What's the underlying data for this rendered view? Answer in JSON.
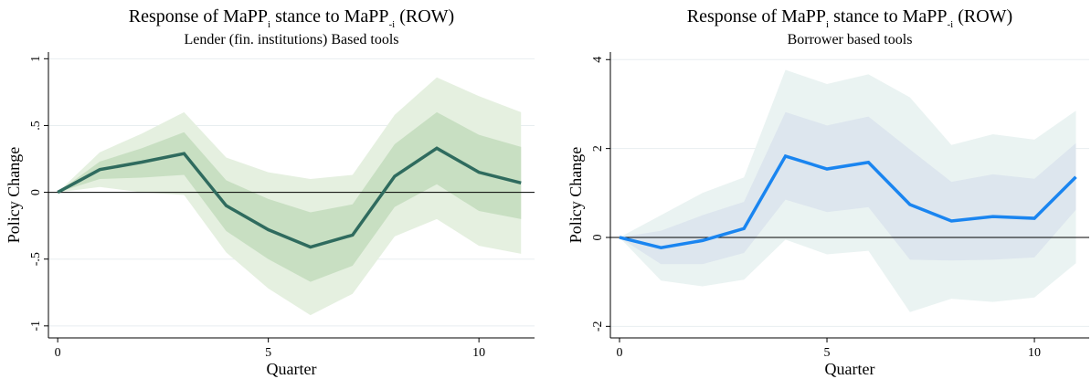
{
  "chart_data": [
    {
      "type": "line",
      "title": [
        "Response of MaPP",
        "i",
        " stance to MaPP",
        "-i",
        " (ROW)"
      ],
      "subtitle": "Lender (fin. institutions) Based tools",
      "xlabel": "Quarter",
      "ylabel": "Policy Change",
      "x": [
        0,
        1,
        2,
        3,
        4,
        5,
        6,
        7,
        8,
        9,
        10,
        11
      ],
      "xlim": [
        -0.22,
        11.32
      ],
      "xticks": [
        0,
        5,
        10
      ],
      "ylim": [
        -1.09,
        1.05
      ],
      "yticks": [
        1,
        {
          "value": 0.5,
          "label": ".5"
        },
        0,
        {
          "value": -0.5,
          "label": "-.5"
        },
        -1
      ],
      "grid": true,
      "reference_line": 0,
      "bands": [
        {
          "color": "#e5f0e0",
          "upper": [
            0,
            0.3,
            0.44,
            0.6,
            0.26,
            0.15,
            0.1,
            0.13,
            0.58,
            0.86,
            0.72,
            0.6
          ],
          "lower": [
            0,
            0.04,
            0.0,
            -0.02,
            -0.45,
            -0.72,
            -0.92,
            -0.76,
            -0.33,
            -0.2,
            -0.4,
            -0.46
          ]
        },
        {
          "color": "#c8dfc2",
          "upper": [
            0,
            0.23,
            0.33,
            0.45,
            0.09,
            -0.05,
            -0.15,
            -0.09,
            0.36,
            0.6,
            0.43,
            0.34
          ],
          "lower": [
            0,
            0.1,
            0.11,
            0.13,
            -0.29,
            -0.5,
            -0.67,
            -0.55,
            -0.11,
            0.06,
            -0.14,
            -0.2
          ]
        }
      ],
      "series": [
        {
          "color": "#2f6b5e",
          "values": [
            0,
            0.17,
            0.226,
            0.29,
            -0.1,
            -0.28,
            -0.41,
            -0.32,
            0.12,
            0.33,
            0.15,
            0.07
          ]
        }
      ]
    },
    {
      "type": "line",
      "title": [
        "Response of MaPP",
        "i",
        " stance to MaPP",
        "-i",
        " (ROW)"
      ],
      "subtitle": "Borrower based tools",
      "xlabel": "Quarter",
      "ylabel": "Policy Change",
      "x": [
        0,
        1,
        2,
        3,
        4,
        5,
        6,
        7,
        8,
        9,
        10,
        11
      ],
      "xlim": [
        -0.22,
        11.32
      ],
      "xticks": [
        0,
        5,
        10
      ],
      "ylim": [
        -2.26,
        4.17
      ],
      "yticks": [
        4,
        2,
        0,
        -2
      ],
      "grid": true,
      "reference_line": 0,
      "bands": [
        {
          "color": "#eaf3f2",
          "upper": [
            0,
            0.5,
            1.0,
            1.35,
            3.77,
            3.45,
            3.67,
            3.15,
            2.08,
            2.32,
            2.2,
            2.85
          ],
          "lower": [
            0,
            -0.97,
            -1.1,
            -0.95,
            -0.05,
            -0.38,
            -0.3,
            -1.68,
            -1.38,
            -1.45,
            -1.35,
            -0.58
          ]
        },
        {
          "color": "#dde6ee",
          "upper": [
            0,
            0.15,
            0.5,
            0.8,
            2.82,
            2.52,
            2.72,
            1.98,
            1.25,
            1.42,
            1.32,
            2.12
          ],
          "lower": [
            0,
            -0.6,
            -0.6,
            -0.35,
            0.85,
            0.57,
            0.68,
            -0.5,
            -0.52,
            -0.5,
            -0.45,
            0.62
          ]
        }
      ],
      "series": [
        {
          "color": "#1a85f0",
          "values": [
            0,
            -0.23,
            -0.07,
            0.2,
            1.83,
            1.54,
            1.69,
            0.74,
            0.37,
            0.47,
            0.43,
            1.36
          ]
        }
      ]
    }
  ]
}
